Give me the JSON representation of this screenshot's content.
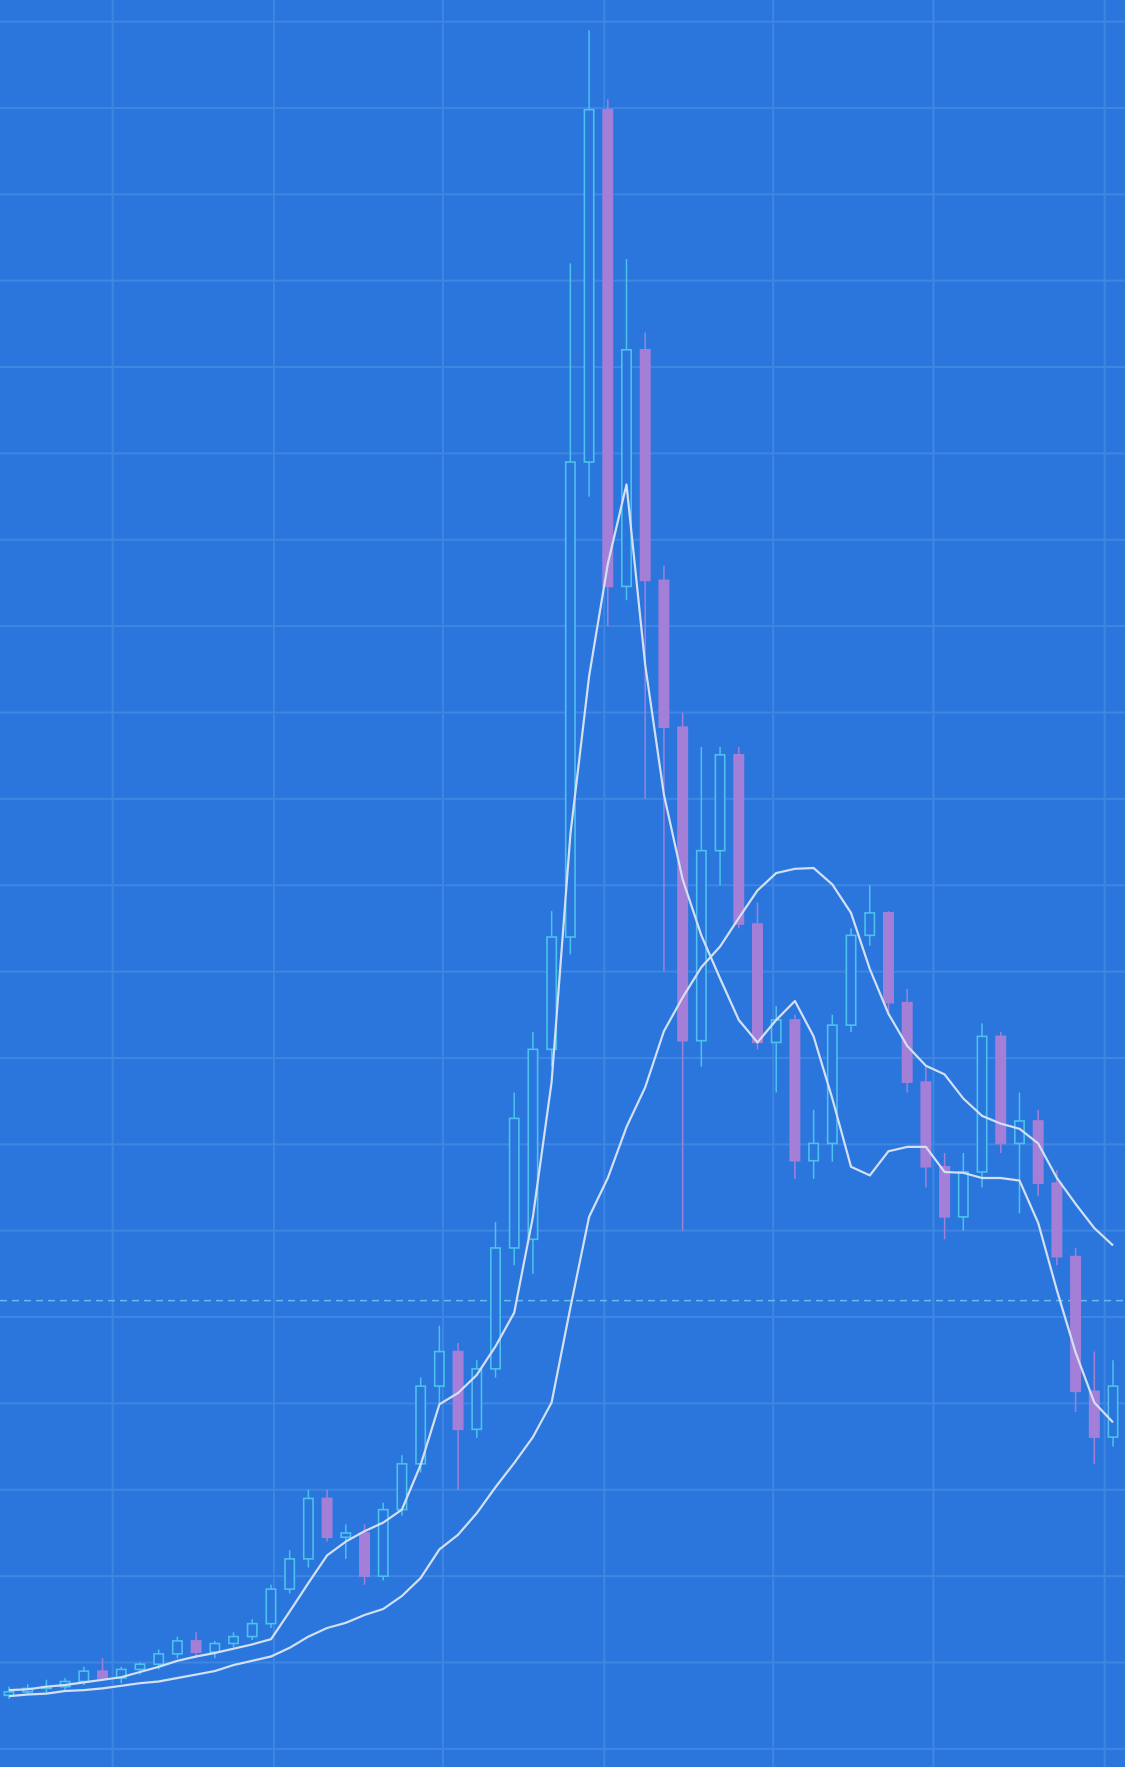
{
  "chart_data": {
    "type": "candlestick",
    "background": "#2a76dc",
    "grid": true,
    "grid_color": "#3e86e2",
    "up_color": "#4cc3ec",
    "down_color": "#a47fd8",
    "xlim": [
      -0.48,
      59.64
    ],
    "ylim": [
      -0.21,
      20.25
    ],
    "xticks": [
      5.54,
      14.16,
      23.19,
      31.81,
      40.84,
      49.4,
      58.55
    ],
    "yticks": [
      0,
      1,
      2,
      3,
      4,
      5,
      6,
      7,
      8,
      9,
      10,
      11,
      12,
      13,
      14,
      15,
      16,
      17,
      18,
      19,
      20
    ],
    "open": [
      0.62,
      0.66,
      0.7,
      0.72,
      0.78,
      0.9,
      0.82,
      0.92,
      0.98,
      1.1,
      1.25,
      1.12,
      1.22,
      1.3,
      1.45,
      1.85,
      2.2,
      2.9,
      2.45,
      2.5,
      2.0,
      2.77,
      3.3,
      4.2,
      4.6,
      3.7,
      4.4,
      5.8,
      5.9,
      8.1,
      9.4,
      14.9,
      18.98,
      13.46,
      16.2,
      13.53,
      11.83,
      8.2,
      10.4,
      11.51,
      9.55,
      8.18,
      8.44,
      6.81,
      7.01,
      8.38,
      9.42,
      9.68,
      8.64,
      7.72,
      6.74,
      6.16,
      6.68,
      8.25,
      7.01,
      7.27,
      6.55,
      5.7,
      4.14,
      3.61
    ],
    "high": [
      0.72,
      0.75,
      0.8,
      0.82,
      0.95,
      1.05,
      0.95,
      1.0,
      1.15,
      1.3,
      1.35,
      1.25,
      1.35,
      1.5,
      1.9,
      2.3,
      3.0,
      3.0,
      2.6,
      2.6,
      2.85,
      3.4,
      4.3,
      4.9,
      4.7,
      4.5,
      6.1,
      7.6,
      8.3,
      9.7,
      17.2,
      19.9,
      19.1,
      17.25,
      16.4,
      13.7,
      12.0,
      11.6,
      11.6,
      11.6,
      9.8,
      8.6,
      8.5,
      7.4,
      8.5,
      9.5,
      10.0,
      9.7,
      8.8,
      7.9,
      6.9,
      6.9,
      8.4,
      8.3,
      7.6,
      7.4,
      6.7,
      5.8,
      4.6,
      4.5
    ],
    "low": [
      0.58,
      0.62,
      0.64,
      0.68,
      0.74,
      0.8,
      0.76,
      0.86,
      0.92,
      1.05,
      1.05,
      1.05,
      1.18,
      1.26,
      1.4,
      1.8,
      2.1,
      2.4,
      2.2,
      1.9,
      1.95,
      2.7,
      3.2,
      4.0,
      3.0,
      3.6,
      4.3,
      5.6,
      5.5,
      7.9,
      9.2,
      14.5,
      13.0,
      13.3,
      11.0,
      9.0,
      6.0,
      7.9,
      10.0,
      9.5,
      8.1,
      7.6,
      6.6,
      6.6,
      6.8,
      8.3,
      9.3,
      8.5,
      7.6,
      6.5,
      5.9,
      6.0,
      6.5,
      6.9,
      6.2,
      6.4,
      5.6,
      3.9,
      3.3,
      3.5
    ],
    "close": [
      0.66,
      0.7,
      0.72,
      0.78,
      0.9,
      0.82,
      0.92,
      0.98,
      1.1,
      1.25,
      1.12,
      1.22,
      1.3,
      1.45,
      1.85,
      2.2,
      2.9,
      2.45,
      2.5,
      2.0,
      2.77,
      3.3,
      4.2,
      4.6,
      3.7,
      4.4,
      5.8,
      7.3,
      8.1,
      9.4,
      14.9,
      18.98,
      13.46,
      16.2,
      13.53,
      11.83,
      8.2,
      10.4,
      11.51,
      9.55,
      8.18,
      8.44,
      6.81,
      7.01,
      8.38,
      9.42,
      9.68,
      8.64,
      7.72,
      6.74,
      6.16,
      6.68,
      8.25,
      7.01,
      7.27,
      6.55,
      5.7,
      4.14,
      3.61,
      4.2
    ],
    "overlays": [
      {
        "color": "#d3e0f4",
        "values": [
          0.68,
          0.69,
          0.72,
          0.74,
          0.77,
          0.8,
          0.83,
          0.89,
          0.95,
          1.02,
          1.07,
          1.11,
          1.16,
          1.21,
          1.27,
          1.59,
          1.92,
          2.24,
          2.4,
          2.52,
          2.62,
          2.77,
          3.29,
          3.99,
          4.12,
          4.33,
          4.66,
          5.05,
          6.16,
          7.72,
          10.59,
          12.42,
          13.72,
          14.64,
          12.55,
          11.05,
          10.07,
          9.42,
          8.92,
          8.44,
          8.18,
          8.44,
          8.66,
          8.25,
          7.53,
          6.74,
          6.64,
          6.92,
          6.97,
          6.97,
          6.68,
          6.67,
          6.61,
          6.61,
          6.58,
          6.09,
          5.31,
          4.59,
          4.01,
          3.78
        ]
      },
      {
        "color": "#d3e0f4",
        "values": [
          0.61,
          0.63,
          0.64,
          0.67,
          0.68,
          0.7,
          0.73,
          0.76,
          0.78,
          0.82,
          0.86,
          0.9,
          0.97,
          1.02,
          1.07,
          1.17,
          1.3,
          1.4,
          1.46,
          1.55,
          1.62,
          1.77,
          1.98,
          2.31,
          2.48,
          2.73,
          3.03,
          3.31,
          3.61,
          4.01,
          5.11,
          6.16,
          6.61,
          7.2,
          7.66,
          8.31,
          8.7,
          9.05,
          9.29,
          9.62,
          9.94,
          10.14,
          10.19,
          10.2,
          10.01,
          9.68,
          9.03,
          8.51,
          8.14,
          7.91,
          7.81,
          7.53,
          7.33,
          7.24,
          7.18,
          7.01,
          6.61,
          6.31,
          6.03,
          5.83
        ]
      }
    ],
    "reference_line": 5.19,
    "reference_color": "#62bdf2"
  }
}
